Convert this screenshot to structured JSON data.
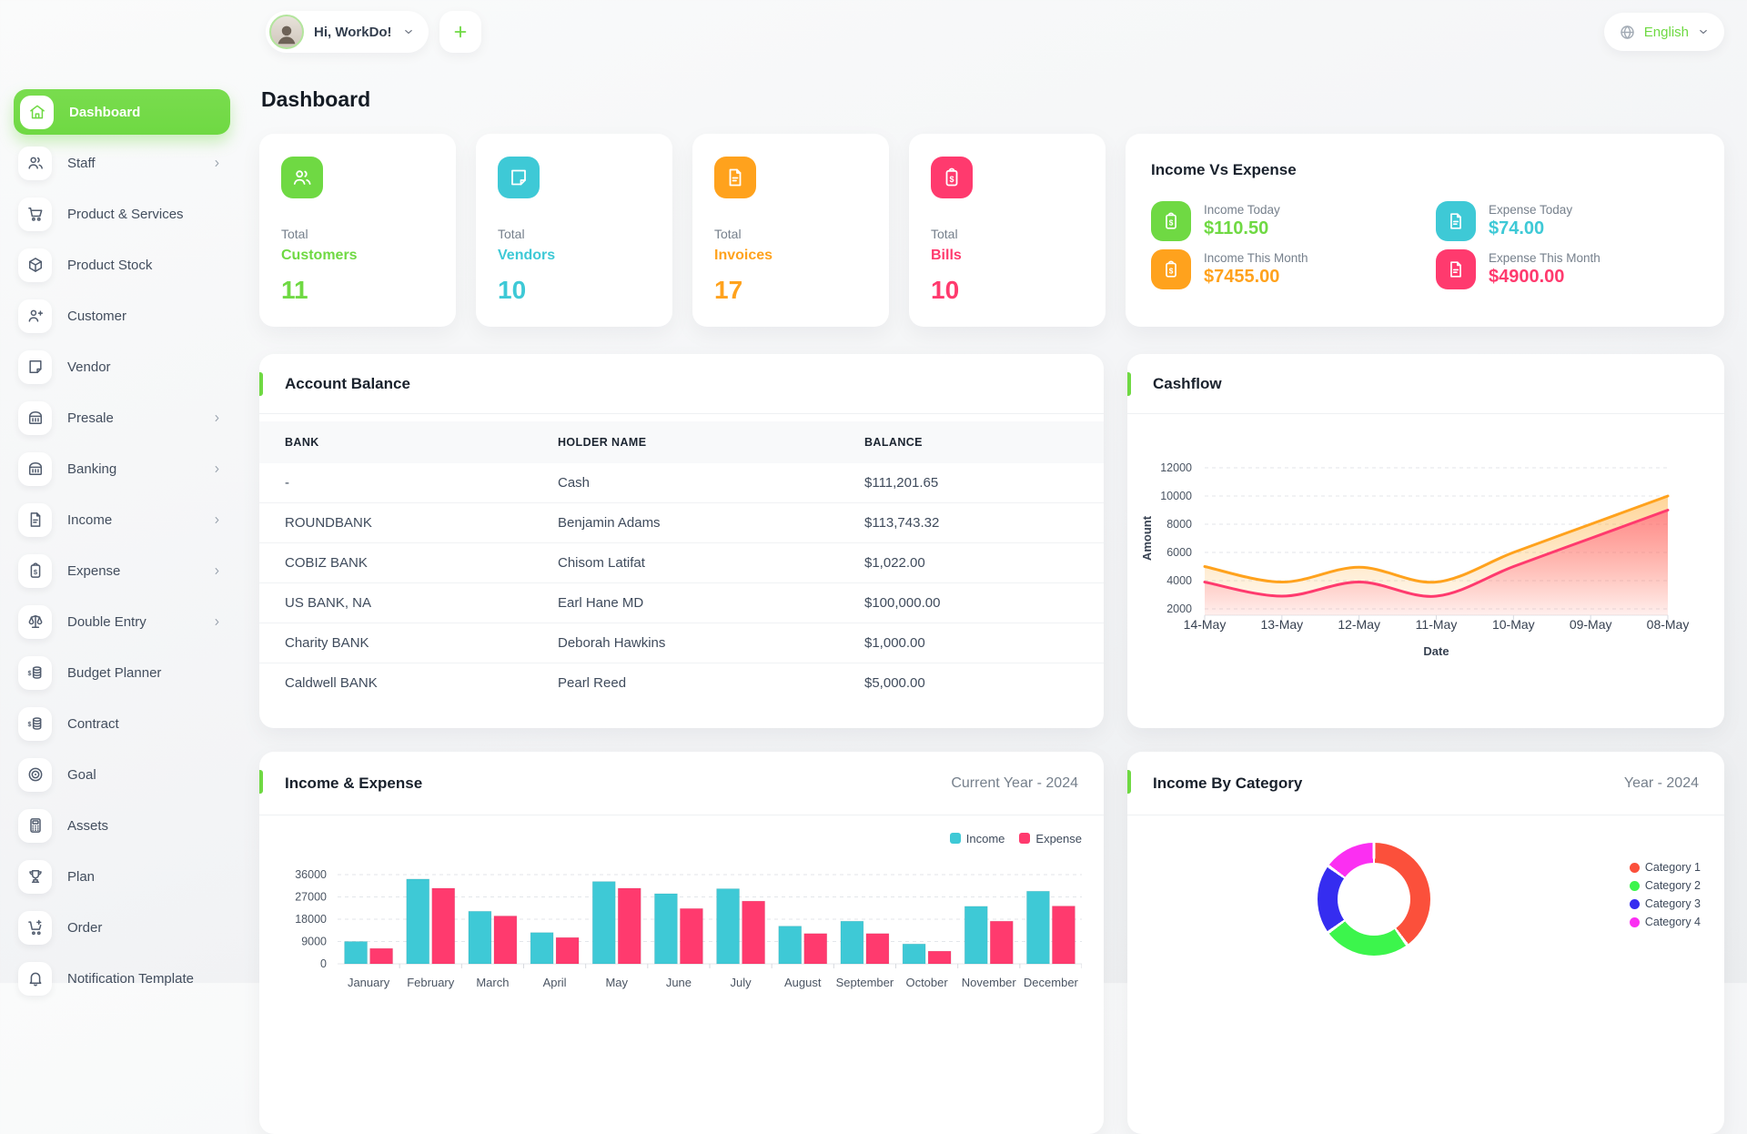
{
  "colors": {
    "primary_green": "#6fd943",
    "info_cyan": "#3ec9d6",
    "warning_orange": "#ffa21d",
    "danger_pink": "#ff3a6e"
  },
  "header": {
    "greeting": "Hi, WorkDo!",
    "add_button": "+",
    "language": "English"
  },
  "page_title": "Dashboard",
  "sidebar": {
    "items": [
      {
        "label": "Dashboard",
        "icon": "home",
        "active": true,
        "chevron": false
      },
      {
        "label": "Staff",
        "icon": "users",
        "active": false,
        "chevron": true
      },
      {
        "label": "Product & Services",
        "icon": "cart",
        "active": false,
        "chevron": false
      },
      {
        "label": "Product Stock",
        "icon": "box",
        "active": false,
        "chevron": false
      },
      {
        "label": "Customer",
        "icon": "user-plus",
        "active": false,
        "chevron": false
      },
      {
        "label": "Vendor",
        "icon": "note",
        "active": false,
        "chevron": false
      },
      {
        "label": "Presale",
        "icon": "bank",
        "active": false,
        "chevron": true
      },
      {
        "label": "Banking",
        "icon": "bank",
        "active": false,
        "chevron": true
      },
      {
        "label": "Income",
        "icon": "file-text",
        "active": false,
        "chevron": true
      },
      {
        "label": "Expense",
        "icon": "clipboard-dollar",
        "active": false,
        "chevron": true
      },
      {
        "label": "Double Entry",
        "icon": "scale",
        "active": false,
        "chevron": true
      },
      {
        "label": "Budget Planner",
        "icon": "coins",
        "active": false,
        "chevron": false
      },
      {
        "label": "Contract",
        "icon": "coins",
        "active": false,
        "chevron": false
      },
      {
        "label": "Goal",
        "icon": "target",
        "active": false,
        "chevron": false
      },
      {
        "label": "Assets",
        "icon": "calculator",
        "active": false,
        "chevron": false
      },
      {
        "label": "Plan",
        "icon": "trophy",
        "active": false,
        "chevron": false
      },
      {
        "label": "Order",
        "icon": "cart-plus",
        "active": false,
        "chevron": false
      },
      {
        "label": "Notification Template",
        "icon": "bell",
        "active": false,
        "chevron": false
      }
    ]
  },
  "stat_cards": [
    {
      "prefix": "Total",
      "label": "Customers",
      "value": "11",
      "color": "#6fd943",
      "icon": "users"
    },
    {
      "prefix": "Total",
      "label": "Vendors",
      "value": "10",
      "color": "#3ec9d6",
      "icon": "note"
    },
    {
      "prefix": "Total",
      "label": "Invoices",
      "value": "17",
      "color": "#ffa21d",
      "icon": "file-text"
    },
    {
      "prefix": "Total",
      "label": "Bills",
      "value": "10",
      "color": "#ff3a6e",
      "icon": "clipboard-dollar"
    }
  ],
  "income_vs_expense": {
    "title": "Income Vs Expense",
    "items": [
      {
        "label": "Income Today",
        "value": "$110.50",
        "color": "#6fd943",
        "icon": "clipboard-dollar"
      },
      {
        "label": "Expense Today",
        "value": "$74.00",
        "color": "#3ec9d6",
        "icon": "file-text"
      },
      {
        "label": "Income This Month",
        "value": "$7455.00",
        "color": "#ffa21d",
        "icon": "clipboard-dollar"
      },
      {
        "label": "Expense This Month",
        "value": "$4900.00",
        "color": "#ff3a6e",
        "icon": "file-text"
      }
    ]
  },
  "account_balance": {
    "title": "Account Balance",
    "columns": [
      "BANK",
      "HOLDER NAME",
      "BALANCE"
    ],
    "rows": [
      [
        "-",
        "Cash",
        "$111,201.65"
      ],
      [
        "ROUNDBANK",
        "Benjamin Adams",
        "$113,743.32"
      ],
      [
        "COBIZ BANK",
        "Chisom Latifat",
        "$1,022.00"
      ],
      [
        "US BANK, NA",
        "Earl Hane MD",
        "$100,000.00"
      ],
      [
        "Charity BANK",
        "Deborah Hawkins",
        "$1,000.00"
      ],
      [
        "Caldwell BANK",
        "Pearl Reed",
        "$5,000.00"
      ]
    ]
  },
  "chart_data": [
    {
      "id": "cashflow",
      "type": "area",
      "title": "Cashflow",
      "xlabel": "Date",
      "ylabel": "Amount",
      "x": [
        "14-May",
        "13-May",
        "12-May",
        "11-May",
        "10-May",
        "09-May",
        "08-May"
      ],
      "series": [
        {
          "name": "Income",
          "color": "#ffa21d",
          "values": [
            5000,
            3900,
            4950,
            3900,
            6000,
            8000,
            10000
          ]
        },
        {
          "name": "Expense",
          "color": "#ff3a6e",
          "values": [
            3900,
            2900,
            3900,
            2900,
            5000,
            7000,
            9000
          ]
        }
      ],
      "ylim": [
        2000,
        12000
      ],
      "yticks": [
        2000,
        4000,
        6000,
        8000,
        10000,
        12000
      ],
      "grid": "dashed horizontal",
      "legend_position": "none"
    },
    {
      "id": "income_expense",
      "type": "bar",
      "title": "Income & Expense",
      "subtitle": "Current Year - 2024",
      "categories": [
        "January",
        "February",
        "March",
        "April",
        "May",
        "June",
        "July",
        "August",
        "September",
        "October",
        "November",
        "December"
      ],
      "series": [
        {
          "name": "Income",
          "color": "#3ec9d6",
          "values": [
            9000,
            34200,
            21200,
            12600,
            33200,
            28300,
            30300,
            15200,
            17200,
            8000,
            23200,
            29300
          ]
        },
        {
          "name": "Expense",
          "color": "#ff3a6e",
          "values": [
            6200,
            30500,
            19300,
            10600,
            30500,
            22300,
            25300,
            12200,
            12200,
            5100,
            17200,
            23300
          ]
        }
      ],
      "ylim": [
        0,
        36000
      ],
      "yticks": [
        0,
        9000,
        18000,
        27000,
        36000
      ],
      "grid": "dashed horizontal",
      "legend_position": "top-right"
    },
    {
      "id": "income_by_category",
      "type": "pie",
      "donut": true,
      "title": "Income By Category",
      "subtitle": "Year - 2024",
      "labels": [
        "Category 1",
        "Category 2",
        "Category 3",
        "Category 4"
      ],
      "values": [
        40,
        25,
        20,
        15
      ],
      "colors": [
        "#fb503b",
        "#3cf54c",
        "#352df0",
        "#fb2ff2"
      ],
      "legend_position": "right"
    }
  ]
}
